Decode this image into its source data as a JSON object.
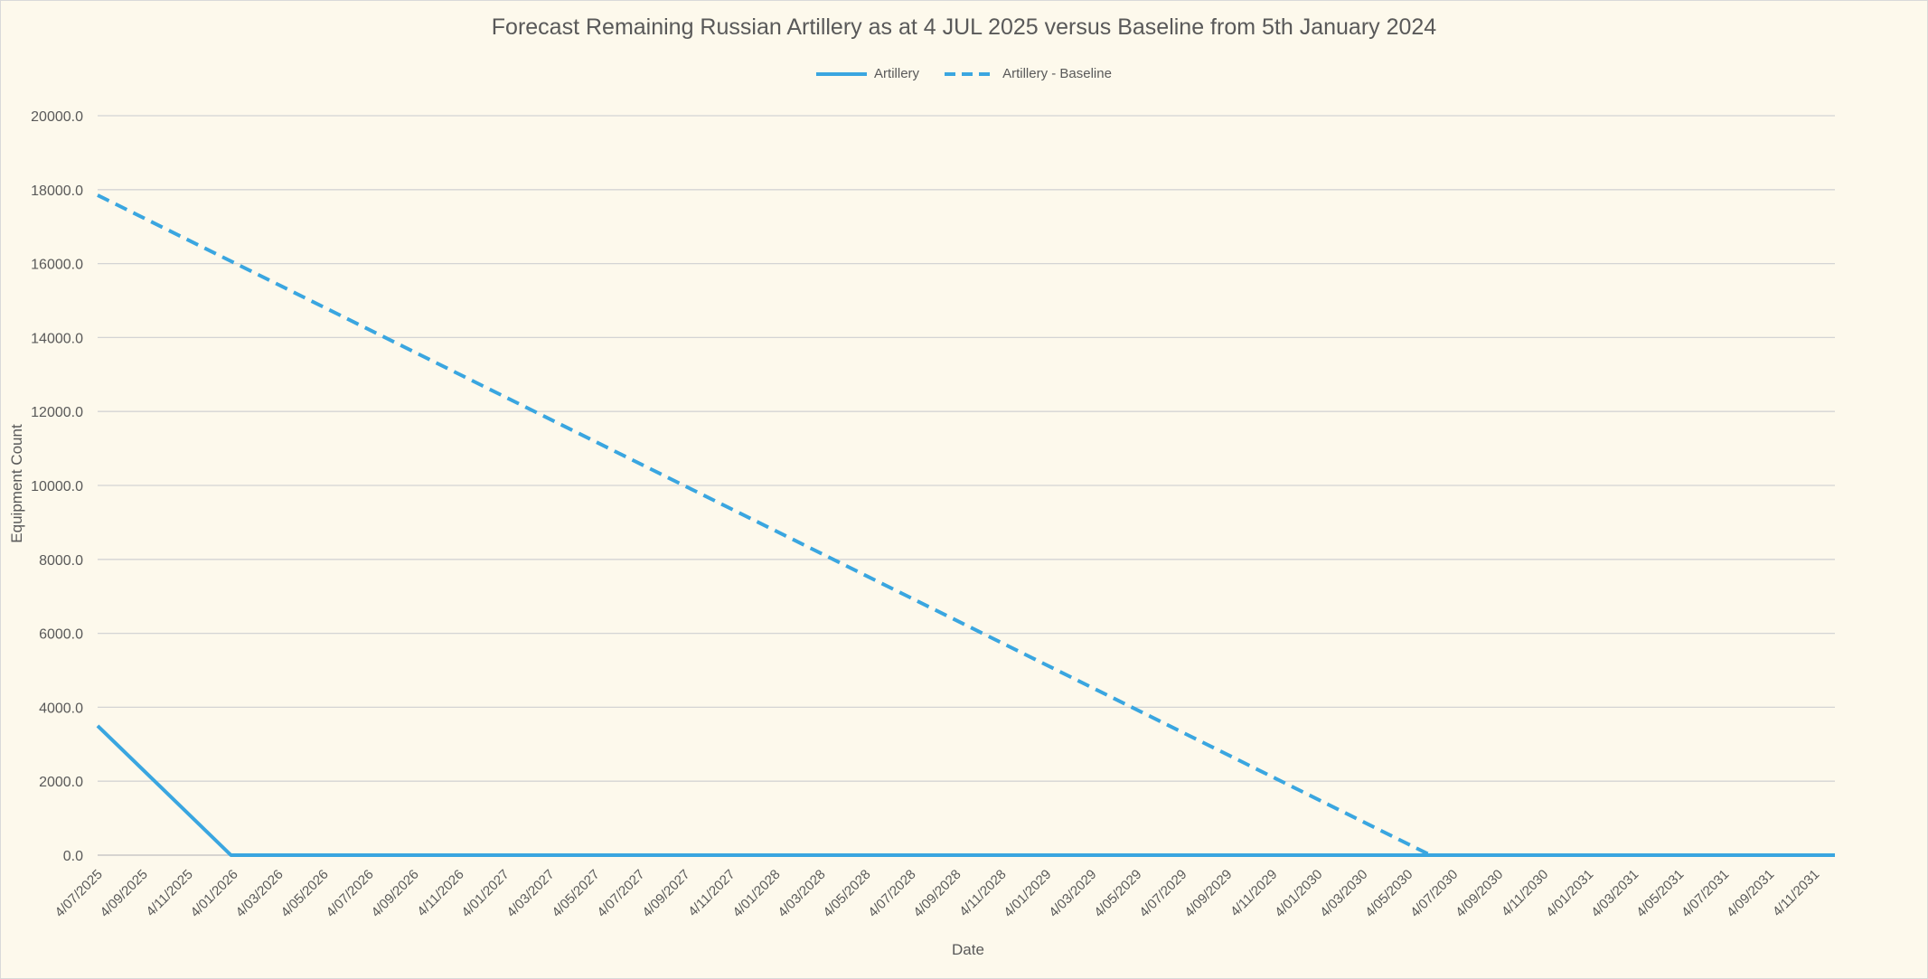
{
  "chart_data": {
    "type": "line",
    "title": "Forecast Remaining Russian Artillery as at 4 JUL 2025 versus Baseline from 5th January 2024",
    "xlabel": "Date",
    "ylabel": "Equipment Count",
    "ylim": [
      0,
      20000
    ],
    "yticks": [
      "0.0",
      "2000.0",
      "4000.0",
      "6000.0",
      "8000.0",
      "10000.0",
      "12000.0",
      "14000.0",
      "16000.0",
      "18000.0",
      "20000.0"
    ],
    "categories": [
      "4/07/2025",
      "4/09/2025",
      "4/11/2025",
      "4/01/2026",
      "4/03/2026",
      "4/05/2026",
      "4/07/2026",
      "4/09/2026",
      "4/11/2026",
      "4/01/2027",
      "4/03/2027",
      "4/05/2027",
      "4/07/2027",
      "4/09/2027",
      "4/11/2027",
      "4/01/2028",
      "4/03/2028",
      "4/05/2028",
      "4/07/2028",
      "4/09/2028",
      "4/11/2028",
      "4/01/2029",
      "4/03/2029",
      "4/05/2029",
      "4/07/2029",
      "4/09/2029",
      "4/11/2029",
      "4/01/2030",
      "4/03/2030",
      "4/05/2030",
      "4/07/2030",
      "4/09/2030",
      "4/11/2030",
      "4/01/2031",
      "4/03/2031",
      "4/05/2031",
      "4/07/2031",
      "4/09/2031",
      "4/11/2031"
    ],
    "x_end": "12/2031",
    "grid": true,
    "legend_position": "top",
    "series": [
      {
        "name": "Artillery",
        "style": "solid",
        "color": "#3aa6e0",
        "points": [
          {
            "x": "4/07/2025",
            "y": 3500
          },
          {
            "x": "1/01/2026",
            "y": 0
          },
          {
            "x": "12/2031",
            "y": 0
          }
        ]
      },
      {
        "name": "Artillery - Baseline",
        "style": "dashed",
        "color": "#3aa6e0",
        "points": [
          {
            "x": "4/07/2025",
            "y": 17850
          },
          {
            "x": "4/06/2030",
            "y": 0
          },
          {
            "x": "12/2031",
            "y": 0
          }
        ]
      }
    ]
  }
}
